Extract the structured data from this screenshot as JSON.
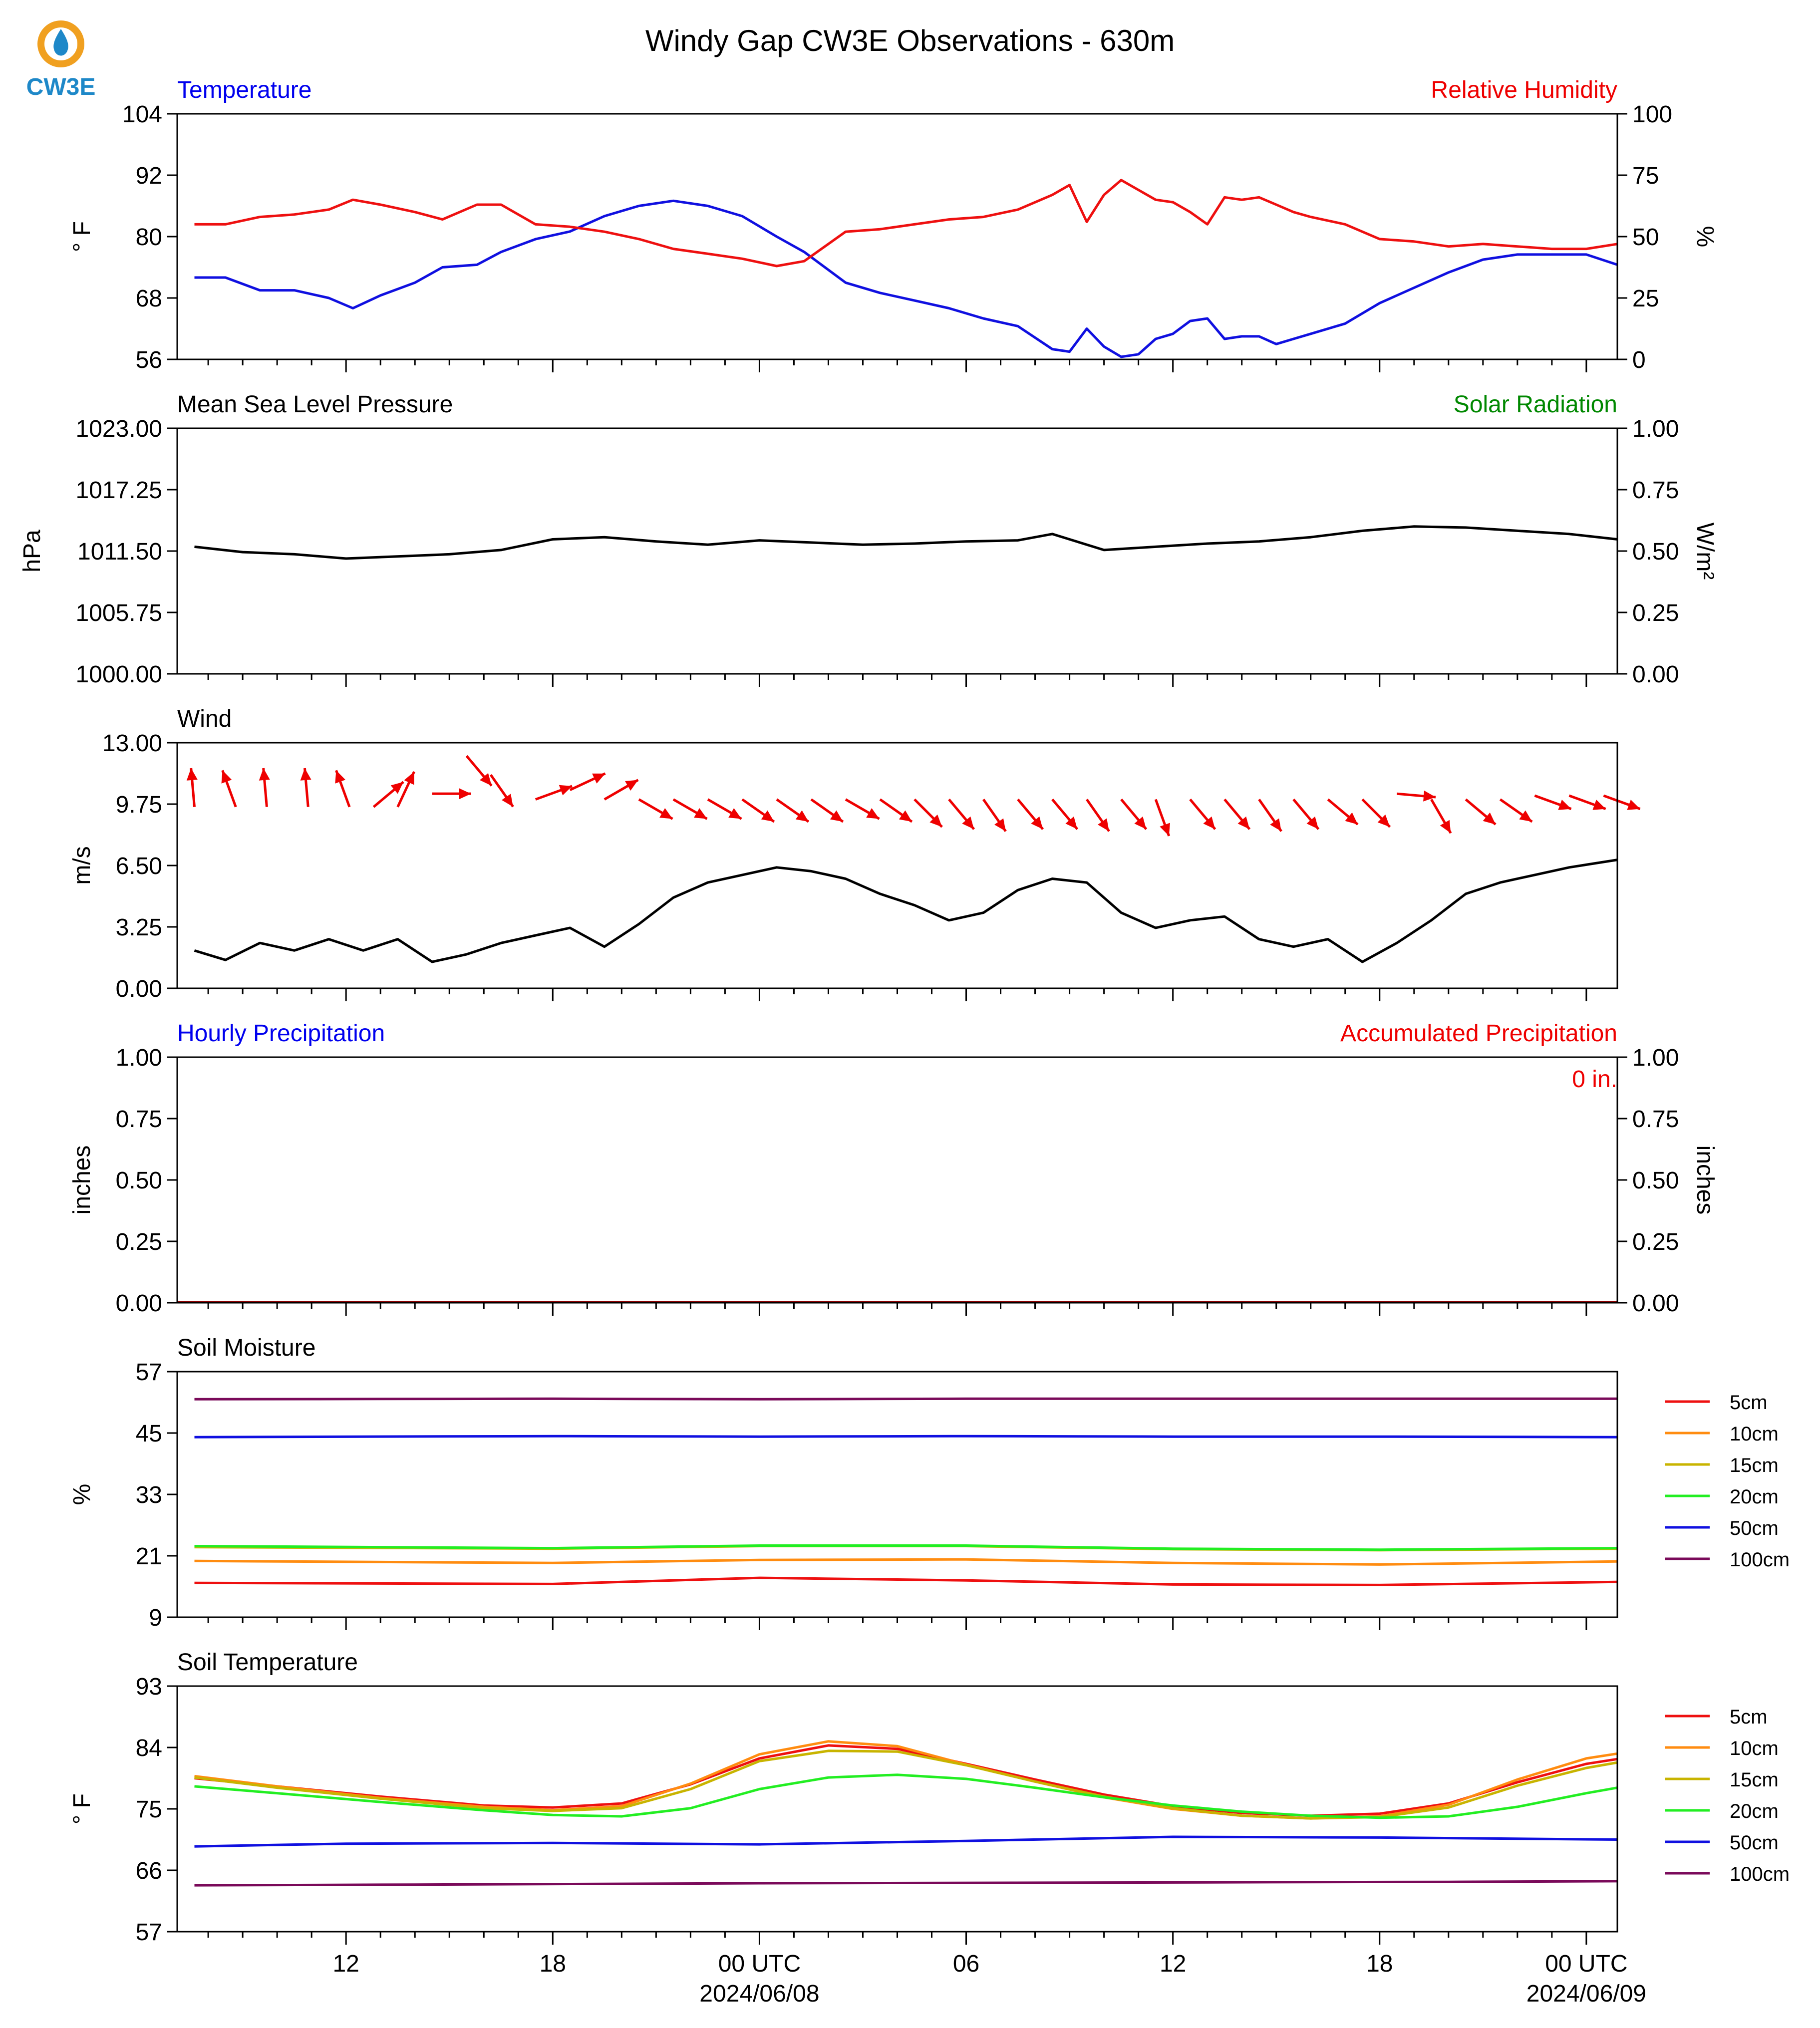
{
  "title": "Windy Gap CW3E Observations - 630m",
  "logo": {
    "text": "CW3E",
    "ring_color": "#f0a020",
    "drop_color": "#1e88c8"
  },
  "time_axis": {
    "ticks": [
      {
        "h": 12,
        "label": "12"
      },
      {
        "h": 18,
        "label": "18"
      },
      {
        "h": 24,
        "label": "00 UTC",
        "sub": "2024/06/08"
      },
      {
        "h": 30,
        "label": "06"
      },
      {
        "h": 36,
        "label": "12"
      },
      {
        "h": 42,
        "label": "18"
      },
      {
        "h": 48,
        "label": "00 UTC",
        "sub": "2024/06/09"
      }
    ]
  },
  "chart_data": [
    {
      "id": "temp-rh",
      "type": "line",
      "title_left": "Temperature",
      "title_right": "Relative Humidity",
      "title_left_color": "#0000ee",
      "title_right_color": "#ee0000",
      "ylabel": "° F",
      "ylabel_right": "%",
      "ylim": [
        56,
        104
      ],
      "ylim_right": [
        0,
        100
      ],
      "yticks": [
        56,
        68,
        80,
        92,
        104
      ],
      "yticks_right": [
        0,
        25,
        50,
        75,
        100
      ],
      "x_unit": "hours since 2024-06-07 00 UTC",
      "series": [
        {
          "axis": "left",
          "color": "#1010e0",
          "x": [
            7.6,
            8.5,
            9.5,
            10.5,
            11.5,
            12.2,
            13,
            14.0,
            14.8,
            15.8,
            16.5,
            17.5,
            18.5,
            19.5,
            20.5,
            21.5,
            22.5,
            23.5,
            24.5,
            25.3,
            26.5,
            27.5,
            28.5,
            29.5,
            30.5,
            31.5,
            32.5,
            33.0,
            33.5,
            34.0,
            34.5,
            35.0,
            35.5,
            36.0,
            36.5,
            37.0,
            37.5,
            38.0,
            38.5,
            39.0,
            39.5,
            40.0,
            41.0,
            42.0,
            43.0,
            44.0,
            45.0,
            46.0,
            47.0,
            48.0,
            48.9
          ],
          "y": [
            72.0,
            72.0,
            69.5,
            69.5,
            68.0,
            66.0,
            68.5,
            71.0,
            74.0,
            74.5,
            77.0,
            79.5,
            81.0,
            84.0,
            86.0,
            87.0,
            86.0,
            84.0,
            80.0,
            77.0,
            71.0,
            69.0,
            67.5,
            66.0,
            64.0,
            62.5,
            58.0,
            57.5,
            62.0,
            58.5,
            56.5,
            57.0,
            60.0,
            61.0,
            63.5,
            64.0,
            60.0,
            60.5,
            60.5,
            59.0,
            60.0,
            61.0,
            63.0,
            67.0,
            70.0,
            73.0,
            75.5,
            76.5,
            76.5,
            76.5,
            74.5
          ]
        },
        {
          "axis": "right",
          "color": "#ee1010",
          "x": [
            7.6,
            8.5,
            9.5,
            10.5,
            11.5,
            12.2,
            13,
            14.0,
            14.8,
            15.8,
            16.5,
            17.5,
            18.5,
            19.5,
            20.5,
            21.5,
            22.5,
            23.5,
            24.5,
            25.3,
            26.5,
            27.5,
            28.5,
            29.5,
            30.5,
            31.5,
            32.5,
            33.0,
            33.5,
            34.0,
            34.5,
            35.0,
            35.5,
            36.0,
            36.5,
            37.0,
            37.5,
            38.0,
            38.5,
            39.0,
            39.5,
            40.0,
            41.0,
            42.0,
            43.0,
            44.0,
            45.0,
            46.0,
            47.0,
            48.0,
            48.9
          ],
          "y": [
            55,
            55,
            58,
            59,
            61,
            65,
            63,
            60,
            57,
            63,
            63,
            55,
            54,
            52,
            49,
            45,
            43,
            41,
            38,
            40,
            52,
            53,
            55,
            57,
            58,
            61,
            67,
            71,
            56,
            67,
            73,
            69,
            65,
            64,
            60,
            55,
            66,
            65,
            66,
            63,
            60,
            58,
            55,
            49,
            48,
            46,
            47,
            46,
            45,
            45,
            47
          ]
        }
      ]
    },
    {
      "id": "pressure",
      "type": "line",
      "title_left": "Mean Sea Level Pressure",
      "title_right": "Solar Radiation",
      "title_left_color": "#000000",
      "title_right_color": "#008800",
      "ylabel": "hPa",
      "ylabel_right": "W/m²",
      "ylim": [
        1000.0,
        1023.0
      ],
      "ylim_right": [
        0.0,
        1.0
      ],
      "yticks": [
        "1000.00",
        "1005.75",
        "1011.50",
        "1017.25",
        "1023.00"
      ],
      "yticks_right": [
        "0.00",
        "0.25",
        "0.50",
        "0.75",
        "1.00"
      ],
      "series": [
        {
          "axis": "left",
          "color": "#000000",
          "x": [
            7.6,
            9.0,
            10.5,
            12.0,
            13.5,
            15.0,
            16.5,
            18.0,
            19.5,
            21.0,
            22.5,
            24.0,
            25.5,
            27.0,
            28.5,
            30.0,
            31.5,
            32.5,
            33.0,
            34.0,
            35.5,
            37.0,
            38.5,
            40.0,
            41.5,
            43.0,
            44.5,
            46.0,
            47.5,
            48.9
          ],
          "y": [
            1011.9,
            1011.4,
            1011.2,
            1010.8,
            1011.0,
            1011.2,
            1011.6,
            1012.6,
            1012.8,
            1012.4,
            1012.1,
            1012.5,
            1012.3,
            1012.1,
            1012.2,
            1012.4,
            1012.5,
            1013.1,
            1012.6,
            1011.6,
            1011.9,
            1012.2,
            1012.4,
            1012.8,
            1013.4,
            1013.8,
            1013.7,
            1013.4,
            1013.1,
            1012.6
          ]
        }
      ]
    },
    {
      "id": "wind",
      "type": "line",
      "title_left": "Wind",
      "title_left_color": "#000000",
      "ylabel": "m/s",
      "ylim": [
        0.0,
        13.0
      ],
      "yticks": [
        "0.00",
        "3.25",
        "6.50",
        "9.75",
        "13.00"
      ],
      "series": [
        {
          "axis": "left",
          "color": "#000000",
          "x": [
            7.6,
            8.5,
            9.5,
            10.5,
            11.5,
            12.5,
            13.5,
            14.5,
            15.5,
            16.5,
            17.5,
            18.5,
            19.5,
            20.5,
            21.5,
            22.5,
            23.5,
            24.5,
            25.5,
            26.5,
            27.5,
            28.5,
            29.5,
            30.5,
            31.5,
            32.5,
            33.5,
            34.5,
            35.5,
            36.5,
            37.5,
            38.5,
            39.5,
            40.5,
            41.5,
            42.5,
            43.5,
            44.5,
            45.5,
            46.5,
            47.5,
            48.9
          ],
          "y": [
            2.0,
            1.5,
            2.4,
            2.0,
            2.6,
            2.0,
            2.6,
            1.4,
            1.8,
            2.4,
            2.8,
            3.2,
            2.2,
            3.4,
            4.8,
            5.6,
            6.0,
            6.4,
            6.2,
            5.8,
            5.0,
            4.4,
            3.6,
            4.0,
            5.2,
            5.8,
            5.6,
            4.0,
            3.2,
            3.6,
            3.8,
            2.6,
            2.2,
            2.6,
            1.4,
            2.4,
            3.6,
            5.0,
            5.6,
            6.0,
            6.4,
            6.8
          ]
        }
      ]
    },
    {
      "id": "precip",
      "type": "bar",
      "title_left": "Hourly Precipitation",
      "title_right": "Accumulated Precipitation",
      "title_left_color": "#0000ee",
      "title_right_color": "#ee0000",
      "annotation": "0 in.",
      "ylabel": "inches",
      "ylabel_right": "inches",
      "ylim": [
        0.0,
        1.0
      ],
      "ylim_right": [
        0.0,
        1.0
      ],
      "yticks": [
        "0.00",
        "0.25",
        "0.50",
        "0.75",
        "1.00"
      ],
      "yticks_right": [
        "0.00",
        "0.25",
        "0.50",
        "0.75",
        "1.00"
      ],
      "values": [
        0.0
      ]
    },
    {
      "id": "soil-moisture",
      "type": "line",
      "title_left": "Soil Moisture",
      "title_left_color": "#000000",
      "ylabel": "%",
      "ylim": [
        9,
        57
      ],
      "yticks": [
        9,
        21,
        33,
        45,
        57
      ],
      "legend": "right",
      "series": [
        {
          "name": "5cm",
          "color": "#ee1010",
          "x": [
            7.6,
            18,
            24,
            30,
            36,
            42,
            48.9
          ],
          "y": [
            15.7,
            15.5,
            16.7,
            16.2,
            15.4,
            15.3,
            15.9
          ]
        },
        {
          "name": "10cm",
          "color": "#ff8c10",
          "x": [
            7.6,
            18,
            24,
            30,
            36,
            42,
            48.9
          ],
          "y": [
            20.0,
            19.6,
            20.2,
            20.3,
            19.6,
            19.3,
            19.9
          ]
        },
        {
          "name": "15cm",
          "color": "#c8b400",
          "x": [
            7.6,
            18,
            24,
            30,
            36,
            42,
            48.9
          ],
          "y": [
            22.7,
            22.4,
            22.9,
            22.9,
            22.3,
            22.1,
            22.4
          ]
        },
        {
          "name": "20cm",
          "color": "#22ee22",
          "x": [
            7.6,
            18,
            24,
            30,
            36,
            42,
            48.9
          ],
          "y": [
            22.9,
            22.5,
            23.0,
            23.0,
            22.4,
            22.2,
            22.5
          ]
        },
        {
          "name": "50cm",
          "color": "#1010e0",
          "x": [
            7.6,
            18,
            24,
            30,
            36,
            42,
            48.9
          ],
          "y": [
            44.2,
            44.4,
            44.3,
            44.4,
            44.3,
            44.3,
            44.2
          ]
        },
        {
          "name": "100cm",
          "color": "#7a0a5a",
          "x": [
            7.6,
            18,
            24,
            30,
            36,
            42,
            48.9
          ],
          "y": [
            51.6,
            51.7,
            51.6,
            51.7,
            51.7,
            51.7,
            51.7
          ]
        }
      ]
    },
    {
      "id": "soil-temperature",
      "type": "line",
      "title_left": "Soil Temperature",
      "title_left_color": "#000000",
      "ylabel": "° F",
      "ylim": [
        57,
        93
      ],
      "yticks": [
        57,
        66,
        75,
        84,
        93
      ],
      "legend": "right",
      "series": [
        {
          "name": "5cm",
          "color": "#ee1010",
          "x": [
            7.6,
            10,
            13,
            16,
            18,
            20,
            22,
            24,
            26,
            28,
            30,
            32,
            34,
            36,
            38,
            40,
            42,
            44,
            46,
            48,
            48.9
          ],
          "y": [
            79.5,
            78.3,
            76.8,
            75.5,
            75.2,
            75.8,
            78.6,
            82.4,
            84.3,
            83.8,
            81.6,
            79.3,
            77.1,
            75.4,
            74.4,
            74.0,
            74.3,
            75.8,
            78.9,
            81.6,
            82.3
          ]
        },
        {
          "name": "10cm",
          "color": "#ff8c10",
          "x": [
            7.6,
            10,
            13,
            16,
            18,
            20,
            22,
            24,
            26,
            28,
            30,
            32,
            34,
            36,
            38,
            40,
            42,
            44,
            46,
            48,
            48.9
          ],
          "y": [
            79.8,
            78.3,
            76.6,
            75.3,
            74.8,
            75.4,
            78.7,
            83.0,
            84.9,
            84.2,
            81.5,
            79.0,
            76.7,
            75.0,
            74.0,
            73.6,
            73.9,
            75.6,
            79.3,
            82.4,
            83.1
          ]
        },
        {
          "name": "15cm",
          "color": "#c8b400",
          "x": [
            7.6,
            10,
            13,
            16,
            18,
            20,
            22,
            24,
            26,
            28,
            30,
            32,
            34,
            36,
            38,
            40,
            42,
            44,
            46,
            48,
            48.9
          ],
          "y": [
            79.6,
            78.1,
            76.5,
            75.1,
            74.7,
            75.1,
            77.9,
            82.0,
            83.5,
            83.4,
            81.4,
            79.0,
            76.8,
            75.1,
            74.0,
            73.6,
            73.8,
            75.2,
            78.4,
            81.0,
            81.8
          ]
        },
        {
          "name": "20cm",
          "color": "#22ee22",
          "x": [
            7.6,
            10,
            13,
            16,
            18,
            20,
            22,
            24,
            26,
            28,
            30,
            32,
            34,
            36,
            38,
            40,
            42,
            44,
            46,
            48,
            48.9
          ],
          "y": [
            78.3,
            77.3,
            76.0,
            74.8,
            74.1,
            73.9,
            75.1,
            77.9,
            79.6,
            80.0,
            79.4,
            78.1,
            76.7,
            75.5,
            74.6,
            74.0,
            73.7,
            73.9,
            75.3,
            77.3,
            78.1
          ]
        },
        {
          "name": "50cm",
          "color": "#1010e0",
          "x": [
            7.6,
            12,
            18,
            24,
            30,
            36,
            42,
            48.9
          ],
          "y": [
            69.5,
            69.9,
            70.0,
            69.8,
            70.3,
            70.9,
            70.8,
            70.5
          ]
        },
        {
          "name": "100cm",
          "color": "#7a0a5a",
          "x": [
            7.6,
            14,
            24,
            34,
            44,
            48.9
          ],
          "y": [
            63.8,
            63.9,
            64.1,
            64.2,
            64.3,
            64.4
          ]
        }
      ]
    }
  ],
  "wind_barbs": {
    "color": "#ee0000",
    "h": [
      7.6,
      8.8,
      9.7,
      10.9,
      12.1,
      12.8,
      13.5,
      14.5,
      15.5,
      16.2,
      17.5,
      18.5,
      19.5,
      20.5,
      21.5,
      22.5,
      23.5,
      24.5,
      25.5,
      26.5,
      27.5,
      28.5,
      29.5,
      30.5,
      31.5,
      32.5,
      33.5,
      34.5,
      35.5,
      36.5,
      37.5,
      38.5,
      39.5,
      40.5,
      41.5,
      42.5,
      43.5,
      44.5,
      45.5,
      46.5,
      47.5,
      48.5
    ],
    "dir_deg": [
      175,
      160,
      175,
      175,
      160,
      230,
      205,
      270,
      320,
      325,
      250,
      245,
      240,
      300,
      300,
      300,
      305,
      305,
      305,
      300,
      305,
      315,
      320,
      325,
      320,
      320,
      325,
      320,
      340,
      320,
      320,
      325,
      320,
      310,
      315,
      275,
      330,
      310,
      305,
      290,
      290,
      290
    ],
    "speed": [
      9.6,
      9.6,
      9.6,
      9.6,
      9.6,
      9.6,
      9.6,
      10.3,
      12.3,
      11.3,
      10.0,
      10.5,
      10.0,
      10.0,
      10.0,
      10.0,
      10.0,
      10.0,
      10.0,
      10.0,
      10.0,
      10.0,
      10.0,
      10.0,
      10.0,
      10.0,
      10.0,
      10.0,
      10.0,
      10.0,
      10.0,
      10.0,
      10.0,
      10.0,
      10.0,
      10.3,
      10.0,
      10.0,
      10.0,
      10.2,
      10.2,
      10.2
    ]
  }
}
